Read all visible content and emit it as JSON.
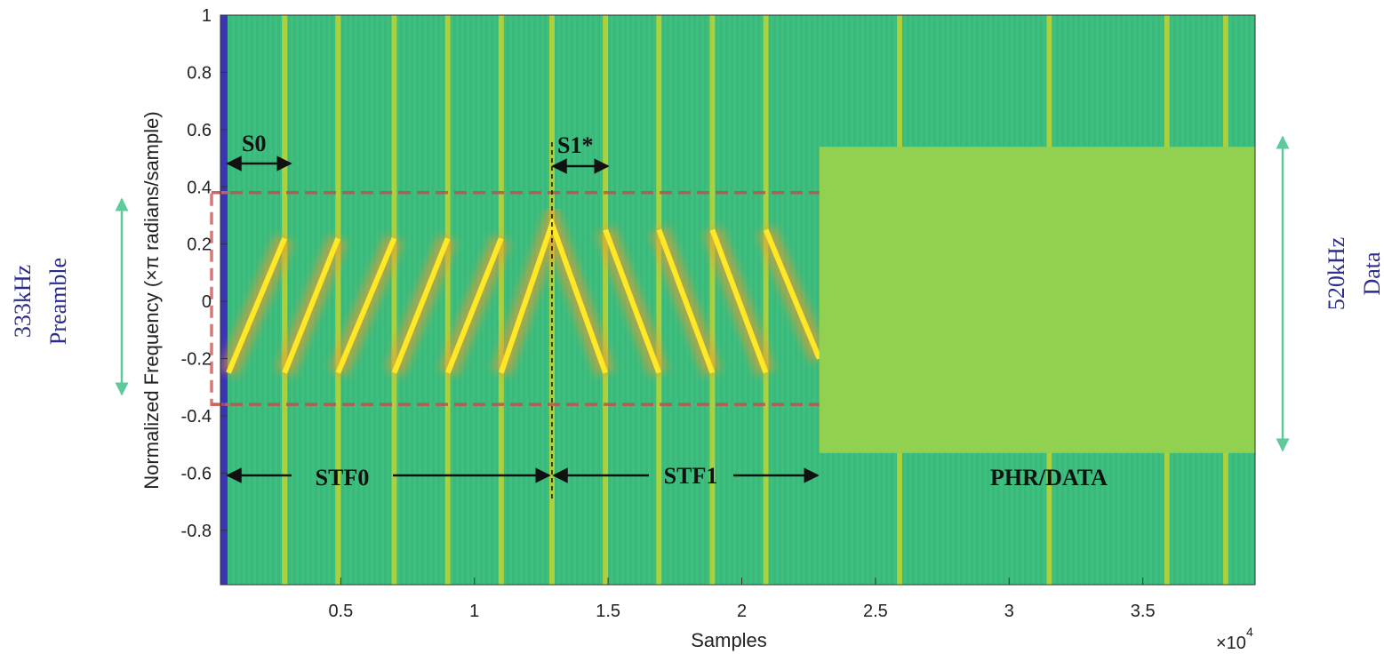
{
  "chart_data": {
    "type": "spectrogram",
    "xlabel": "Samples",
    "ylabel": "Normalized Frequency (×π radians/sample)",
    "x_multiplier": "×10",
    "x_multiplier_exp": "4",
    "xlim": [
      0.05,
      3.92
    ],
    "ylim": [
      -0.99,
      1
    ],
    "xticks": [
      0.5,
      1,
      1.5,
      2,
      2.5,
      3,
      3.5
    ],
    "yticks": [
      -0.8,
      -0.6,
      -0.4,
      -0.2,
      0,
      0.2,
      0.4,
      0.6,
      0.8,
      1
    ],
    "background": "#3cc080",
    "chirp": {
      "color": "#ffe826",
      "x": [
        0.08,
        0.29,
        null,
        0.29,
        0.49,
        null,
        0.49,
        0.7,
        null,
        0.7,
        0.9,
        null,
        0.9,
        1.1,
        null,
        1.1,
        1.29,
        1.49,
        null,
        1.49,
        1.69,
        null,
        1.69,
        1.89,
        null,
        1.89,
        2.09,
        null,
        2.09,
        2.29
      ],
      "y": [
        -0.25,
        0.22,
        null,
        -0.25,
        0.22,
        null,
        -0.25,
        0.22,
        null,
        -0.25,
        0.22,
        null,
        -0.25,
        0.22,
        null,
        -0.25,
        0.27,
        -0.25,
        null,
        0.25,
        -0.25,
        null,
        0.25,
        -0.25,
        null,
        0.25,
        -0.25,
        null,
        0.25,
        -0.2
      ]
    },
    "stripes": [
      0.29,
      0.49,
      0.7,
      0.9,
      1.1,
      1.29,
      1.49,
      1.69,
      1.89,
      2.09,
      2.59,
      3.15,
      3.59,
      3.81
    ],
    "stripe_color": "#c8d630",
    "data_block": {
      "x": [
        2.29,
        3.92
      ],
      "y": [
        -0.53,
        0.54
      ],
      "color": "#92d050"
    },
    "preamble_band": [
      -0.36,
      0.38
    ],
    "divider_x": 1.29,
    "annotations": {
      "s0": "S0",
      "s1": "S1*",
      "stf0": "STF0",
      "stf1": "STF1",
      "phr": "PHR/DATA",
      "left_rate": "333kHz",
      "left_name": "Preamble",
      "right_rate": "520kHz",
      "right_name": "Data"
    }
  }
}
